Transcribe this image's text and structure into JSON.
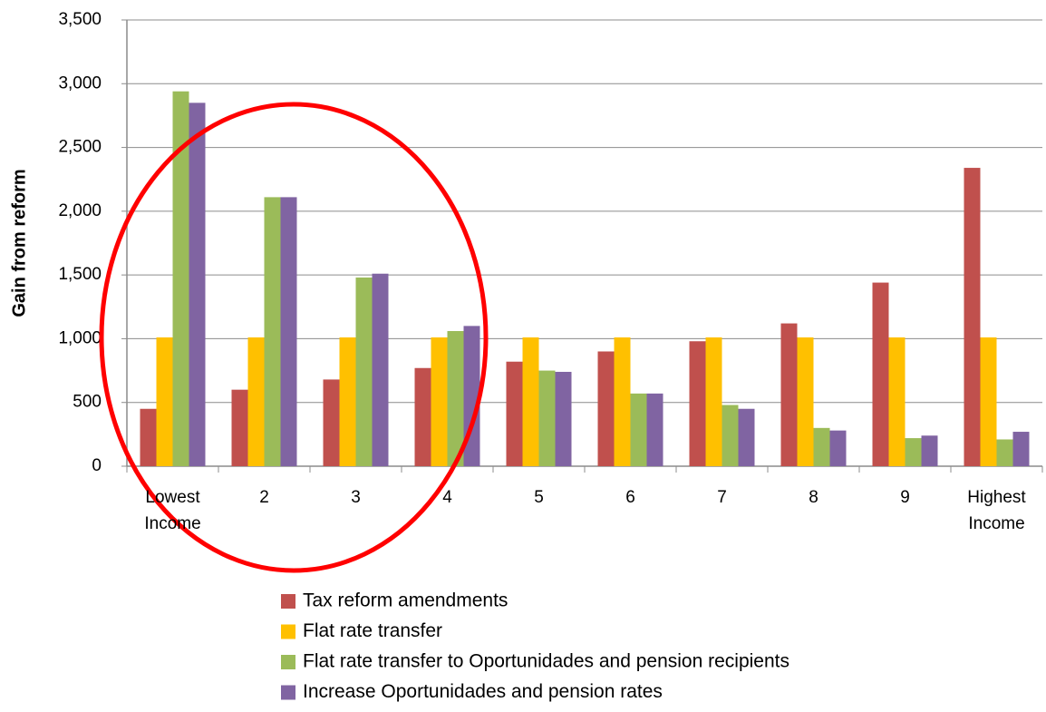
{
  "chart_data": {
    "type": "bar",
    "y_label": "Gain from reform",
    "categories": [
      "Lowest Income",
      "2",
      "3",
      "4",
      "5",
      "6",
      "7",
      "8",
      "9",
      "Highest Income"
    ],
    "series": [
      {
        "name": "Tax reform amendments",
        "color": "#c0504d",
        "values": [
          450,
          600,
          680,
          770,
          820,
          900,
          980,
          1120,
          1440,
          2340
        ]
      },
      {
        "name": "Flat rate transfer",
        "color": "#ffc000",
        "values": [
          1010,
          1010,
          1010,
          1010,
          1010,
          1010,
          1010,
          1010,
          1010,
          1010
        ]
      },
      {
        "name": "Flat rate transfer to Oportunidades and pension recipients",
        "color": "#9bbb59",
        "values": [
          2940,
          2110,
          1480,
          1060,
          750,
          570,
          480,
          300,
          220,
          210
        ]
      },
      {
        "name": "Increase Oportunidades and pension rates",
        "color": "#8064a2",
        "values": [
          2850,
          2110,
          1510,
          1100,
          740,
          570,
          450,
          280,
          240,
          270
        ]
      }
    ],
    "ylim": [
      0,
      3500
    ],
    "yticks": [
      0,
      500,
      {
        "value": 1000,
        "label": "1,000"
      },
      {
        "value": 1500,
        "label": "1,500"
      },
      {
        "value": 2000,
        "label": "2,000"
      },
      {
        "value": 2500,
        "label": "2,500"
      },
      {
        "value": 3000,
        "label": "3,000"
      },
      {
        "value": 3500,
        "label": "3,500"
      }
    ],
    "grid": true
  }
}
